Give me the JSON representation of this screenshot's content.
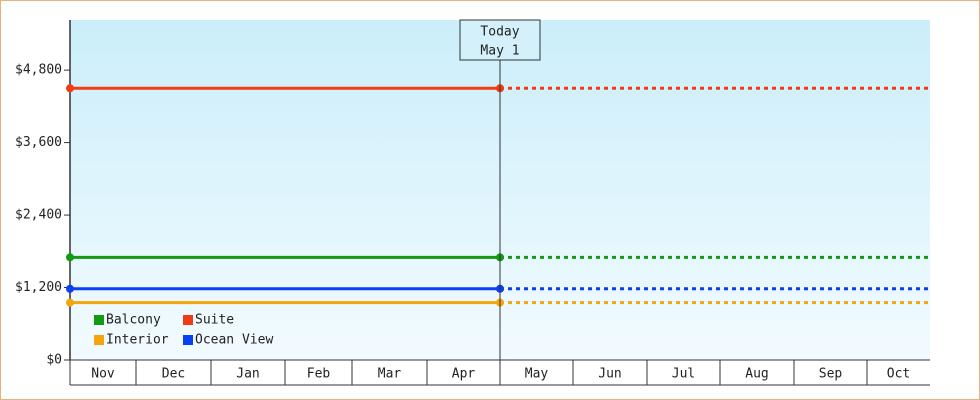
{
  "chart_data": {
    "type": "line",
    "categories": [
      "Nov",
      "Dec",
      "Jan",
      "Feb",
      "Mar",
      "Apr",
      "May",
      "Jun",
      "Jul",
      "Aug",
      "Sep",
      "Oct"
    ],
    "series": [
      {
        "name": "Balcony",
        "color": "#129a12",
        "value": 1700
      },
      {
        "name": "Suite",
        "color": "#f03c14",
        "value": 4500
      },
      {
        "name": "Interior",
        "color": "#f5a50c",
        "value": 950
      },
      {
        "name": "Ocean View",
        "color": "#0a40f0",
        "value": 1180
      }
    ],
    "annotation": [
      "Today",
      "May 1"
    ],
    "ylim": [
      0,
      5630
    ],
    "yticks": [
      {
        "value": 0,
        "label": "$0"
      },
      {
        "value": 1200,
        "label": "$1,200"
      },
      {
        "value": 2400,
        "label": "$2,400"
      },
      {
        "value": 3600,
        "label": "$3,600"
      },
      {
        "value": 4800,
        "label": "$4,800"
      }
    ]
  }
}
